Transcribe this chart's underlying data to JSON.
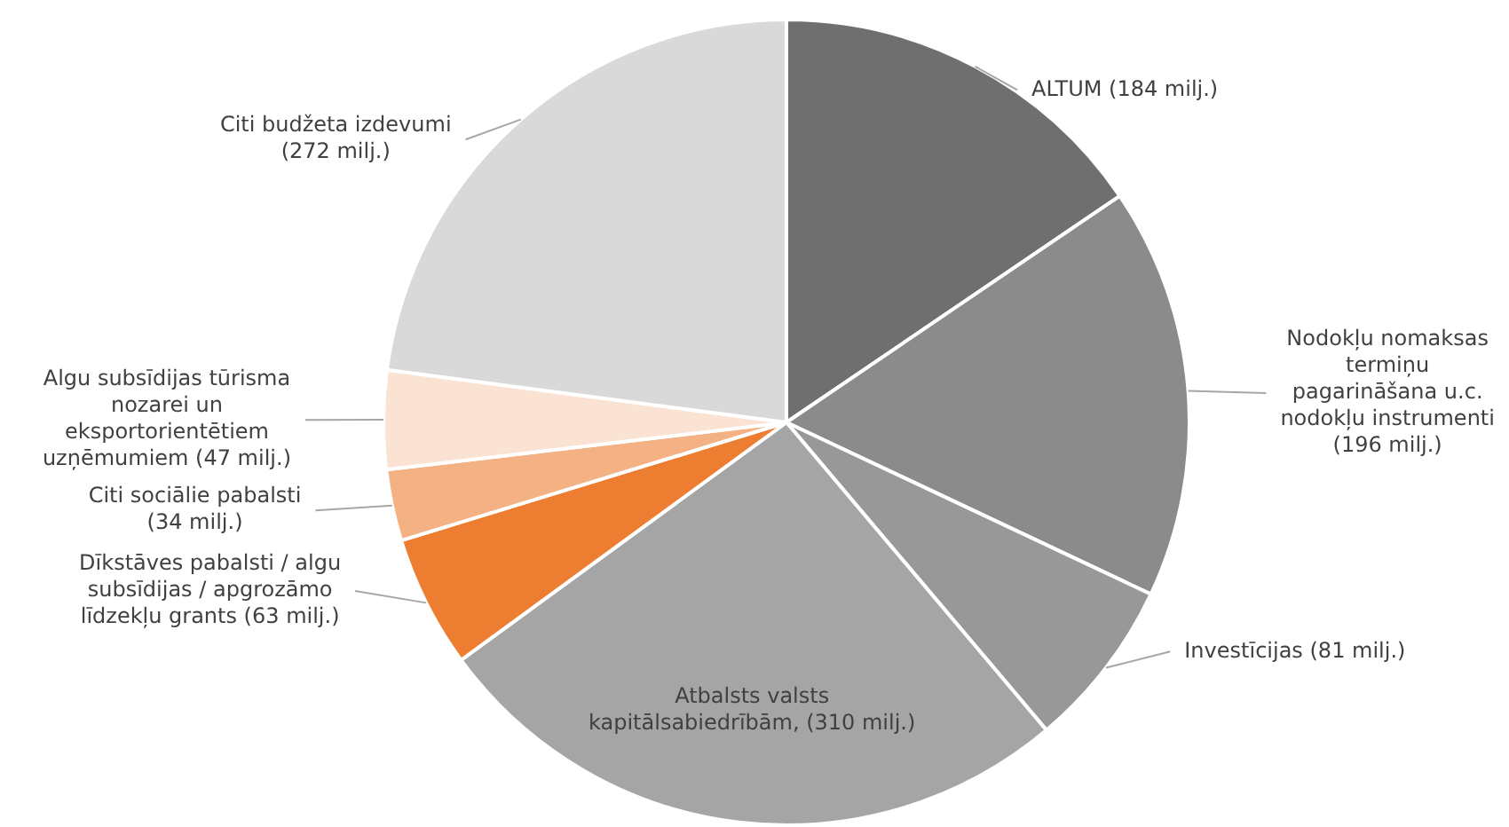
{
  "chart_data": {
    "type": "pie",
    "categories": [
      "ALTUM",
      "Nodokļu nomaksas termiņu pagarināšana u.c. nodokļu instrumenti",
      "Investīcijas",
      "Atbalsts valsts kapitālsabiedrībām",
      "Dīkstāves pabalsti / algu subsīdijas / apgrozāmo līdzekļu grants",
      "Citi sociālie pabalsti",
      "Algu subsīdijas tūrisma nozarei un eksportorientētiem uzņēmumiem",
      "Citi budžeta izdevumi"
    ],
    "values": [
      184,
      196,
      81,
      310,
      63,
      34,
      47,
      272
    ],
    "value_labels": [
      "(184 milj.)",
      "(196 milj.)",
      "(81 milj.)",
      "(310 milj.)",
      "(63 milj.)",
      "(34 milj.)",
      "(47 milj.)",
      "(272 milj.)"
    ],
    "colors": [
      "#6f6f6f",
      "#8b8b8b",
      "#989898",
      "#a5a5a5",
      "#ed7d31",
      "#f4b183",
      "#fbe3d4",
      "#d9d9d9"
    ],
    "legend": false
  }
}
